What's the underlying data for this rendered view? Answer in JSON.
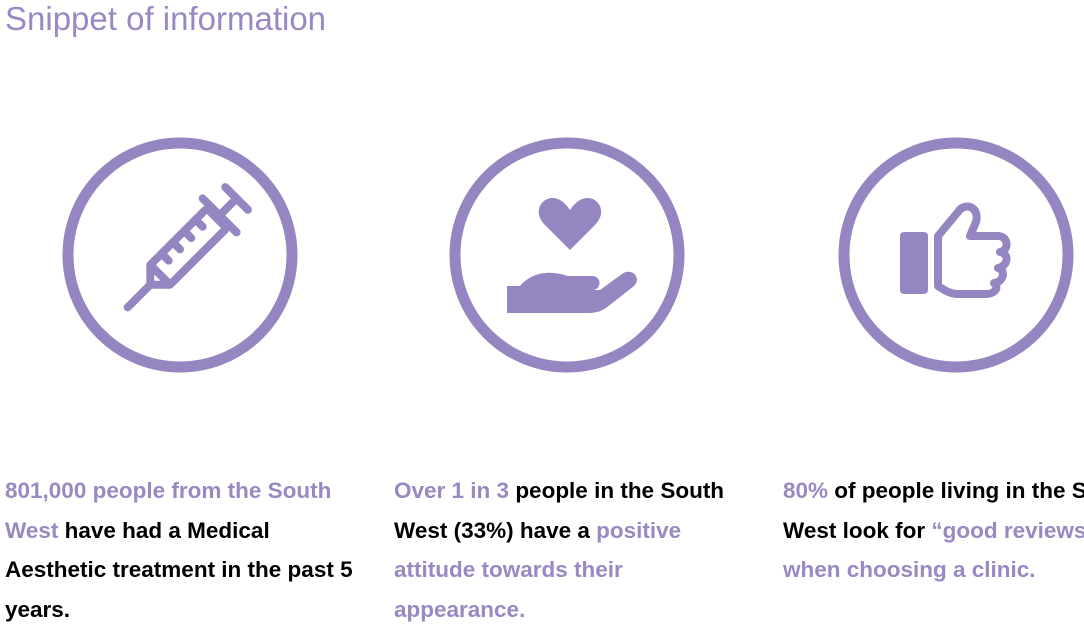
{
  "header": {
    "title": "Snippet of information"
  },
  "items": [
    {
      "segments": [
        {
          "text": "801,000 people from the South West",
          "accent": true
        },
        {
          "text": " have had a Medical Aesthetic treatment in the past 5 years.",
          "accent": false
        }
      ]
    },
    {
      "segments": [
        {
          "text": "Over 1 in 3",
          "accent": true
        },
        {
          "text": " people in the South West (33%) have a ",
          "accent": false
        },
        {
          "text": "positive attitude towards their appearance.",
          "accent": true
        }
      ]
    },
    {
      "segments": [
        {
          "text": "80%",
          "accent": true
        },
        {
          "text": " of people living in the South West look for ",
          "accent": false
        },
        {
          "text": "“good reviews” when choosing a clinic.",
          "accent": true
        }
      ]
    }
  ]
}
